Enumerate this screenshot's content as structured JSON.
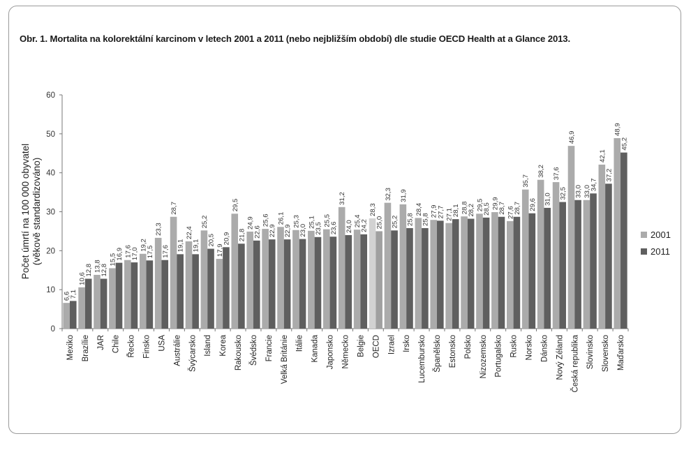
{
  "chart_data": {
    "type": "bar",
    "title": "Obr. 1. Mortalita na kolorektální karcinom v letech 2001 a 2011 (nebo nejbližším období) dle studie OECD Health at a Glance 2013.",
    "ylabel_lines": [
      "Počet úmrtí na 100 000 obyvatel",
      "(věkově standardizováno)"
    ],
    "xlabel": "",
    "ylim": [
      0,
      60
    ],
    "yticks": [
      0,
      10,
      20,
      30,
      40,
      50,
      60
    ],
    "grid": false,
    "legend_position": "right",
    "categories": [
      "Mexiko",
      "Brazílie",
      "JAR",
      "Chile",
      "Řecko",
      "Finsko",
      "USA",
      "Austrálie",
      "Švýcarsko",
      "Island",
      "Korea",
      "Rakousko",
      "Švédsko",
      "Francie",
      "Velká Británie",
      "Itálie",
      "Kanada",
      "Japonsko",
      "Německo",
      "Belgie",
      "OECD",
      "Izrael",
      "Irsko",
      "Lucembursko",
      "Španělsko",
      "Estonsko",
      "Polsko",
      "Nizozemsko",
      "Portugalsko",
      "Rusko",
      "Norsko",
      "Dánsko",
      "Nový Zéland",
      "Česká republika",
      "Slovinsko",
      "Slovensko",
      "Maďarsko"
    ],
    "series": [
      {
        "name": "2001",
        "color": "#ababab",
        "values": [
          6.6,
          10.6,
          13.8,
          15.5,
          17.6,
          19.2,
          23.3,
          28.7,
          22.4,
          25.2,
          17.9,
          29.5,
          24.9,
          25.6,
          26.1,
          25.3,
          25.1,
          25.5,
          31.2,
          25.4,
          28.3,
          32.3,
          31.9,
          28.4,
          27.9,
          27.1,
          28.8,
          29.5,
          29.9,
          27.6,
          35.7,
          38.2,
          37.6,
          46.9,
          33.0,
          42.1,
          48.9
        ],
        "labels": [
          "6,6",
          "10,6",
          "13,8",
          "15,5",
          "17,6",
          "19,2",
          "23,3",
          "28,7",
          "22,4",
          "25,2",
          "17,9",
          "29,5",
          "24,9",
          "25,6",
          "26,1",
          "25,3",
          "25,1",
          "25,5",
          "31,2",
          "25,4",
          "28,3",
          "32,3",
          "31,9",
          "28,4",
          "27,9",
          "27,1",
          "28,8",
          "29,5",
          "29,9",
          "27,6",
          "35,7",
          "38,2",
          "37,6",
          "46,9",
          "33,0",
          "42,1",
          "48,9"
        ]
      },
      {
        "name": "2011",
        "color": "#5f5f5f",
        "values": [
          7.1,
          12.8,
          12.8,
          16.9,
          17.0,
          17.5,
          17.6,
          19.1,
          19.1,
          20.5,
          20.9,
          21.8,
          22.6,
          22.9,
          22.9,
          23.0,
          23.5,
          23.6,
          24.0,
          24.2,
          25.0,
          25.2,
          25.8,
          25.8,
          27.7,
          28.1,
          28.2,
          28.5,
          28.7,
          28.7,
          29.6,
          31.0,
          32.5,
          33.0,
          34.7,
          37.2,
          45.2
        ],
        "labels": [
          "7,1",
          "12,8",
          "12,8",
          "16,9",
          "17,0",
          "17,5",
          "17,6",
          "19,1",
          "19,1",
          "20,5",
          "20,9",
          "21,8",
          "22,6",
          "22,9",
          "22,9",
          "23,0",
          "23,5",
          "23,6",
          "24,0",
          "24,2",
          "25,0",
          "25,2",
          "25,8",
          "25,8",
          "27,7",
          "28,1",
          "28,2",
          "28,5",
          "28,7",
          "28,7",
          "29,6",
          "31,0",
          "32,5",
          "33,0",
          "34,7",
          "37,2",
          "45,2"
        ]
      }
    ],
    "oecd_highlight_colors": {
      "2001": "#d2d2d2",
      "2011": "#a0a0a0"
    }
  }
}
